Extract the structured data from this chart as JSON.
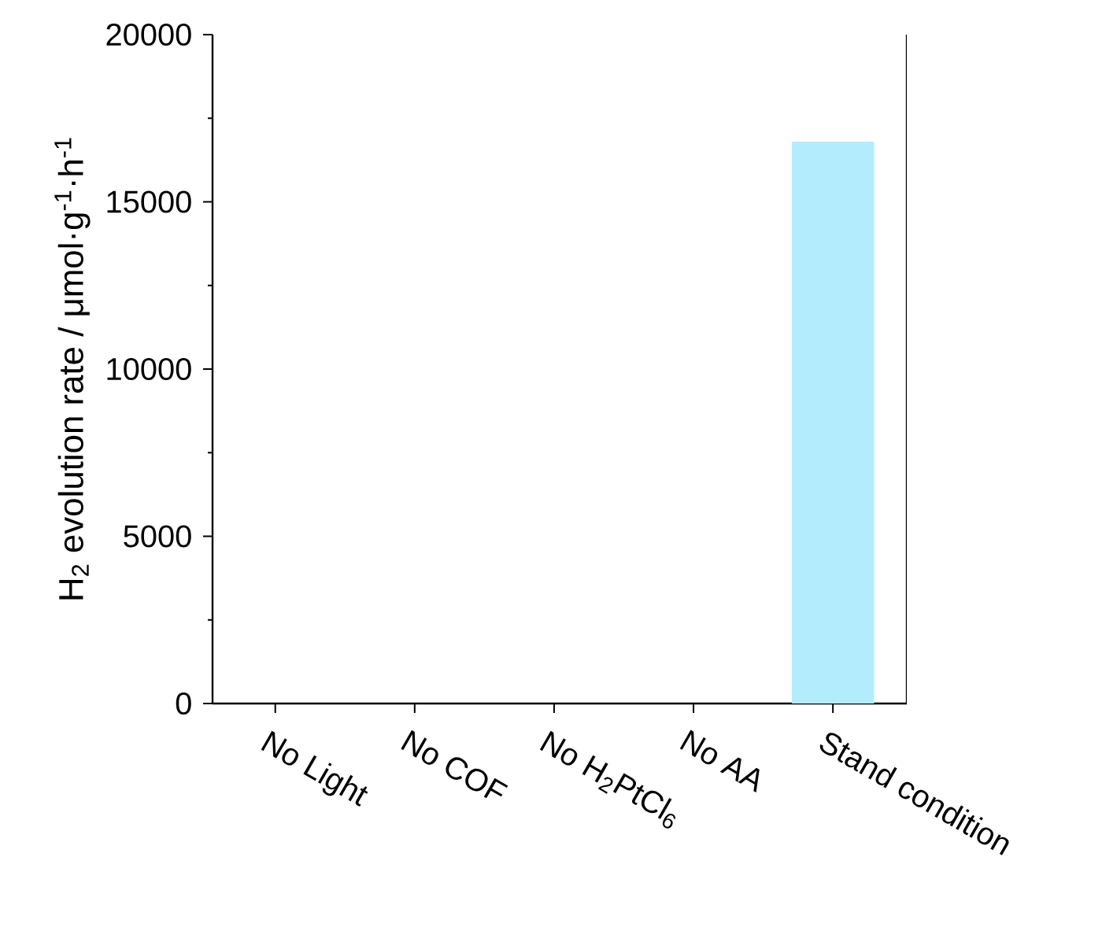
{
  "chart_data": {
    "type": "bar",
    "ylabel": "H$_{2}$ evolution rate / μmol·g$^{-1}$·h$^{-1}$",
    "categories": [
      "No Light",
      "No COF",
      "No H$_{2}$PtCl$_{6}$",
      "No AA",
      "Stand condition"
    ],
    "values": [
      0,
      0,
      0,
      0,
      16800
    ],
    "color": "#b3ecfc",
    "ylim": [
      0,
      20000
    ],
    "yticks": [
      0,
      5000,
      10000,
      15000,
      20000
    ],
    "grid": false
  }
}
